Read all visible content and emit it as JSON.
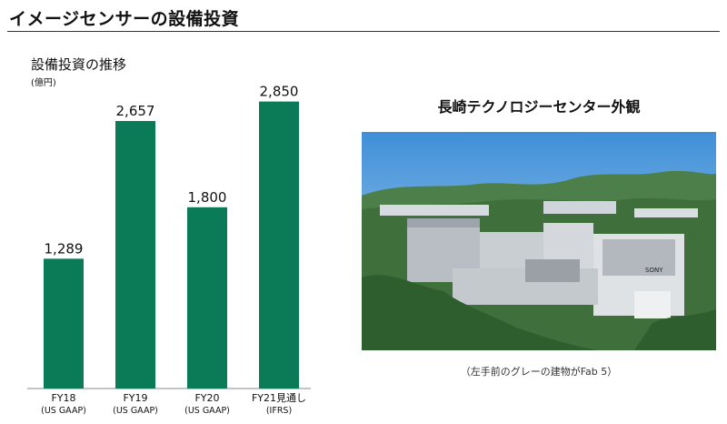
{
  "page_title": "イメージセンサーの設備投資",
  "chart_data": {
    "type": "bar",
    "title": "設備投資の推移",
    "ylabel": "(億円)",
    "categories": [
      "FY18",
      "FY19",
      "FY20",
      "FY21見通し"
    ],
    "category_notes": [
      "(US GAAP)",
      "(US GAAP)",
      "(US GAAP)",
      "(IFRS)"
    ],
    "values": [
      1289,
      2657,
      1800,
      2850
    ],
    "value_labels": [
      "1,289",
      "2,657",
      "1,800",
      "2,850"
    ],
    "ylim": [
      0,
      3000
    ],
    "bar_color": "#0b7a57",
    "grid": false,
    "legend": "none"
  },
  "photo": {
    "title": "長崎テクノロジーセンター外観",
    "caption": "（左手前のグレーの建物がFab 5）",
    "sign_text": "SONY"
  },
  "colors": {
    "bar": "#0b7a57",
    "sky": "#6fb0e6",
    "forest": "#3f6f3a"
  }
}
